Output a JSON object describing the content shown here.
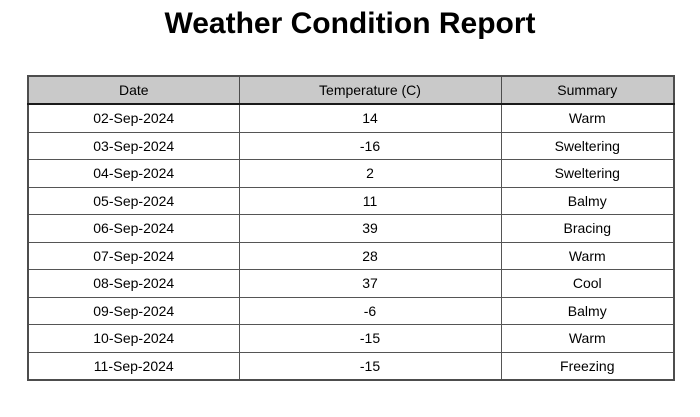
{
  "page": {
    "title": "Weather Condition Report"
  },
  "table": {
    "columns": [
      "Date",
      "Temperature (C)",
      "Summary"
    ],
    "rows": [
      {
        "date": "02-Sep-2024",
        "temperature": "14",
        "summary": "Warm"
      },
      {
        "date": "03-Sep-2024",
        "temperature": "-16",
        "summary": "Sweltering"
      },
      {
        "date": "04-Sep-2024",
        "temperature": "2",
        "summary": "Sweltering"
      },
      {
        "date": "05-Sep-2024",
        "temperature": "11",
        "summary": "Balmy"
      },
      {
        "date": "06-Sep-2024",
        "temperature": "39",
        "summary": "Bracing"
      },
      {
        "date": "07-Sep-2024",
        "temperature": "28",
        "summary": "Warm"
      },
      {
        "date": "08-Sep-2024",
        "temperature": "37",
        "summary": "Cool"
      },
      {
        "date": "09-Sep-2024",
        "temperature": "-6",
        "summary": "Balmy"
      },
      {
        "date": "10-Sep-2024",
        "temperature": "-15",
        "summary": "Warm"
      },
      {
        "date": "11-Sep-2024",
        "temperature": "-15",
        "summary": "Freezing"
      }
    ]
  },
  "colors": {
    "background": "#ffffff",
    "header_background": "#c9c9c9",
    "border": "#4d4d4d",
    "text": "#000000"
  }
}
